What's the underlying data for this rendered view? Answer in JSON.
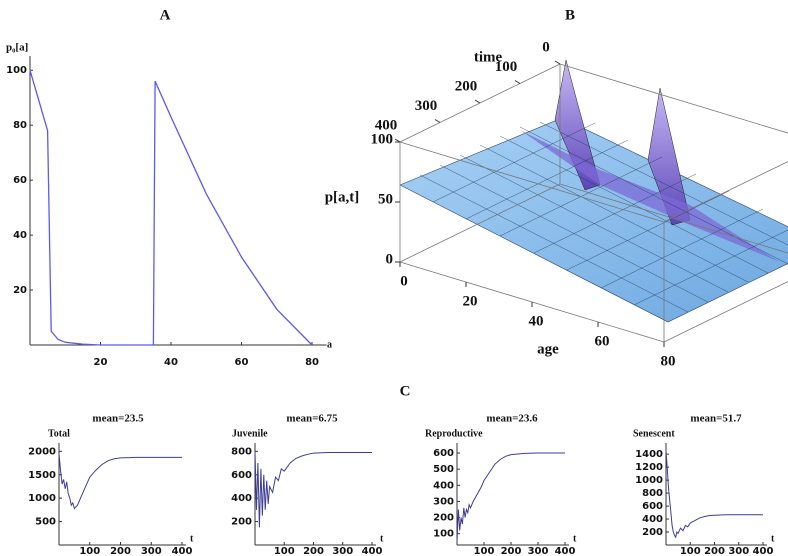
{
  "group_label": "C",
  "chart_data": [
    {
      "type": "line",
      "title": "A",
      "xlabel": "a",
      "ylabel": "p₀[a]",
      "color": "#5a5af2",
      "x": [
        0,
        5,
        6,
        8,
        10,
        15,
        20,
        30,
        35,
        35.5,
        40,
        50,
        60,
        70,
        80
      ],
      "values": [
        100,
        78,
        5,
        2,
        1,
        0.3,
        0,
        0,
        0,
        96,
        83,
        55,
        32,
        13,
        0
      ],
      "xlim": [
        0,
        83
      ],
      "xticks": [
        20,
        40,
        60,
        80
      ],
      "ylim": [
        0,
        103
      ],
      "yticks": [
        20,
        40,
        60,
        80,
        100
      ]
    },
    {
      "type": "surface",
      "title": "B",
      "xlabel": "age",
      "ylabel": "time",
      "zlabel": "p[a,t]",
      "xlim": [
        0,
        80
      ],
      "xticks": [
        0,
        20,
        40,
        60,
        80
      ],
      "ylim": [
        0,
        400
      ],
      "yticks": [
        0,
        100,
        200,
        300,
        400
      ],
      "zlim": [
        0,
        100
      ],
      "zticks": [
        0,
        50,
        100
      ]
    },
    {
      "type": "line",
      "title": "mean=23.5",
      "ylabel": "Total",
      "xlabel": "t",
      "color": "#3d3d96",
      "x": [
        0,
        5,
        10,
        15,
        20,
        25,
        30,
        35,
        40,
        45,
        50,
        60,
        70,
        80,
        90,
        100,
        120,
        140,
        160,
        180,
        200,
        250,
        300,
        350,
        400
      ],
      "values": [
        1950,
        1600,
        1300,
        1400,
        1200,
        1350,
        1100,
        1000,
        850,
        900,
        780,
        850,
        1000,
        1150,
        1300,
        1450,
        1600,
        1720,
        1800,
        1840,
        1860,
        1870,
        1870,
        1870,
        1870
      ],
      "xlim": [
        0,
        400
      ],
      "xticks": [
        100,
        200,
        300,
        400
      ],
      "ylim": [
        0,
        2050
      ],
      "yticks": [
        500,
        1000,
        1500,
        2000
      ]
    },
    {
      "type": "line",
      "title": "mean=6.75",
      "ylabel": "Juvenile",
      "xlabel": "t",
      "color": "#3d3d96",
      "x": [
        0,
        5,
        10,
        15,
        20,
        25,
        30,
        35,
        40,
        45,
        50,
        60,
        70,
        80,
        90,
        100,
        120,
        140,
        160,
        180,
        200,
        250,
        300,
        350,
        400
      ],
      "values": [
        800,
        300,
        700,
        150,
        650,
        250,
        600,
        300,
        550,
        350,
        500,
        450,
        580,
        550,
        650,
        630,
        700,
        740,
        760,
        775,
        785,
        790,
        790,
        790,
        790
      ],
      "xlim": [
        0,
        400
      ],
      "xticks": [
        100,
        200,
        300,
        400
      ],
      "ylim": [
        0,
        820
      ],
      "yticks": [
        200,
        400,
        600,
        800
      ]
    },
    {
      "type": "line",
      "title": "mean=23.6",
      "ylabel": "Reproductive",
      "xlabel": "t",
      "color": "#3d3d96",
      "x": [
        0,
        5,
        10,
        15,
        20,
        25,
        30,
        35,
        40,
        45,
        50,
        60,
        70,
        80,
        90,
        100,
        120,
        140,
        160,
        180,
        200,
        250,
        300,
        350,
        400
      ],
      "values": [
        50,
        250,
        120,
        200,
        160,
        260,
        200,
        250,
        230,
        280,
        260,
        300,
        330,
        360,
        390,
        430,
        480,
        530,
        560,
        580,
        590,
        598,
        600,
        600,
        600
      ],
      "xlim": [
        0,
        400
      ],
      "xticks": [
        100,
        200,
        300,
        400
      ],
      "ylim": [
        30,
        625
      ],
      "yticks": [
        100,
        200,
        300,
        400,
        500,
        600
      ]
    },
    {
      "type": "line",
      "title": "mean=51.7",
      "ylabel": "Senescent",
      "xlabel": "t",
      "color": "#3d3d96",
      "x": [
        0,
        5,
        10,
        15,
        20,
        25,
        30,
        35,
        40,
        45,
        50,
        60,
        70,
        80,
        90,
        100,
        120,
        140,
        160,
        180,
        200,
        250,
        300,
        350,
        400
      ],
      "values": [
        1450,
        1200,
        900,
        700,
        500,
        300,
        200,
        150,
        120,
        200,
        180,
        260,
        220,
        300,
        280,
        340,
        380,
        420,
        440,
        455,
        460,
        465,
        465,
        465,
        465
      ],
      "xlim": [
        0,
        400
      ],
      "xticks": [
        100,
        200,
        300,
        400
      ],
      "ylim": [
        0,
        1480
      ],
      "yticks": [
        200,
        400,
        600,
        800,
        1000,
        1200,
        1400
      ]
    }
  ]
}
